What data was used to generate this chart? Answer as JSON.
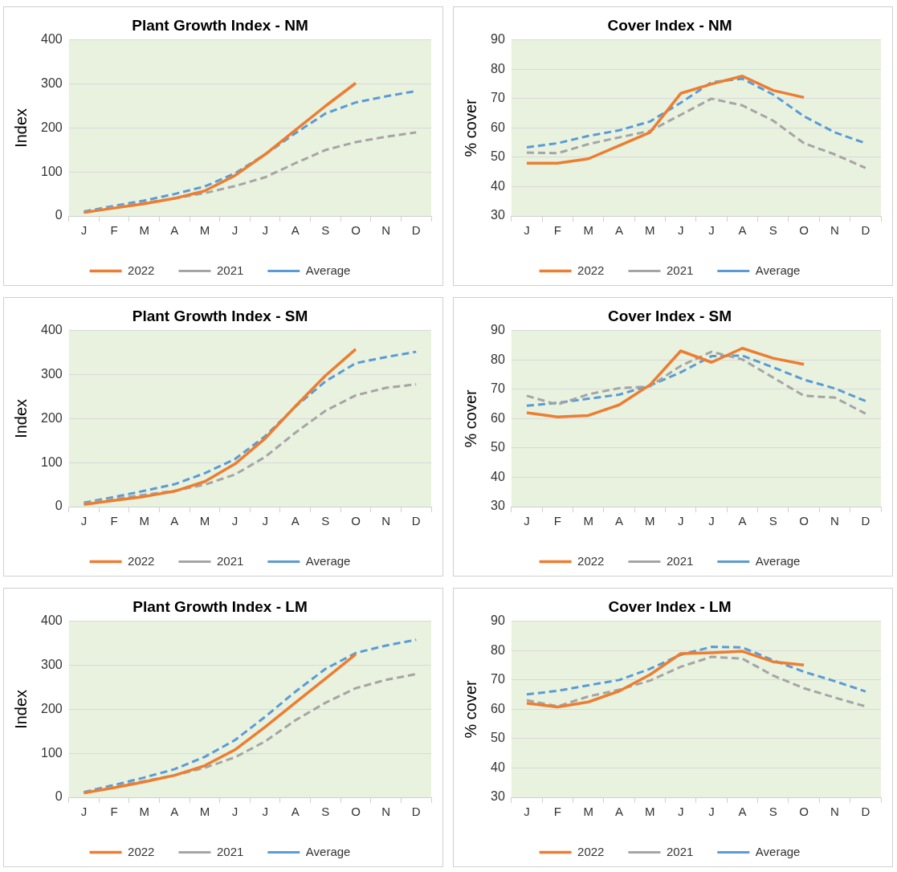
{
  "chart_data": [
    {
      "type": "line",
      "title": "Plant Growth Index - NM",
      "ylabel": "Index",
      "categories": [
        "J",
        "F",
        "M",
        "A",
        "M",
        "J",
        "J",
        "A",
        "S",
        "O",
        "N",
        "D"
      ],
      "ylim": [
        0,
        400
      ],
      "yticks": [
        0,
        100,
        200,
        300,
        400
      ],
      "grid": "y",
      "legend": "bottom",
      "series": [
        {
          "name": "2022",
          "color": "#ed7d31",
          "line_style": "solid",
          "values": [
            8,
            18,
            28,
            40,
            57,
            92,
            140,
            195,
            250,
            302,
            null,
            null
          ]
        },
        {
          "name": "2021",
          "color": "#a5a5a5",
          "line_style": "dashed",
          "values": [
            8,
            20,
            30,
            40,
            52,
            68,
            88,
            120,
            150,
            168,
            180,
            190
          ]
        },
        {
          "name": "Average",
          "color": "#5b9bd5",
          "line_style": "dashed",
          "values": [
            10,
            23,
            35,
            50,
            67,
            97,
            140,
            188,
            233,
            258,
            272,
            284
          ]
        }
      ]
    },
    {
      "type": "line",
      "title": "Cover Index - NM",
      "ylabel": "% cover",
      "categories": [
        "J",
        "F",
        "M",
        "A",
        "M",
        "J",
        "J",
        "A",
        "S",
        "O",
        "N",
        "D"
      ],
      "ylim": [
        30,
        90
      ],
      "yticks": [
        30,
        40,
        50,
        60,
        70,
        80,
        90
      ],
      "grid": "y",
      "legend": "bottom",
      "series": [
        {
          "name": "2022",
          "color": "#ed7d31",
          "line_style": "solid",
          "values": [
            48,
            48,
            49.5,
            54,
            58.5,
            71.8,
            75,
            77.7,
            72.8,
            70.4,
            null,
            null
          ]
        },
        {
          "name": "2021",
          "color": "#a5a5a5",
          "line_style": "dashed",
          "values": [
            51.6,
            51.4,
            54.5,
            56.8,
            59,
            64.5,
            70,
            67.7,
            62.5,
            54.8,
            51,
            46.4
          ]
        },
        {
          "name": "Average",
          "color": "#5b9bd5",
          "line_style": "dashed",
          "values": [
            53.4,
            54.8,
            57.3,
            59.2,
            62.2,
            68.6,
            75.6,
            76.8,
            71.4,
            64,
            58.5,
            54.8
          ]
        }
      ]
    },
    {
      "type": "line",
      "title": "Plant Growth Index - SM",
      "ylabel": "Index",
      "categories": [
        "J",
        "F",
        "M",
        "A",
        "M",
        "J",
        "J",
        "A",
        "S",
        "O",
        "N",
        "D"
      ],
      "ylim": [
        0,
        400
      ],
      "yticks": [
        0,
        100,
        200,
        300,
        400
      ],
      "grid": "y",
      "legend": "bottom",
      "series": [
        {
          "name": "2022",
          "color": "#ed7d31",
          "line_style": "solid",
          "values": [
            5,
            14,
            23,
            35,
            57,
            97,
            155,
            228,
            298,
            358,
            null,
            null
          ]
        },
        {
          "name": "2021",
          "color": "#a5a5a5",
          "line_style": "dashed",
          "values": [
            7,
            18,
            27,
            36,
            50,
            73,
            113,
            168,
            218,
            253,
            270,
            278
          ]
        },
        {
          "name": "Average",
          "color": "#5b9bd5",
          "line_style": "dashed",
          "values": [
            9,
            22,
            36,
            51,
            76,
            108,
            160,
            227,
            285,
            326,
            340,
            352
          ]
        }
      ]
    },
    {
      "type": "line",
      "title": "Cover Index - SM",
      "ylabel": "% cover",
      "categories": [
        "J",
        "F",
        "M",
        "A",
        "M",
        "J",
        "J",
        "A",
        "S",
        "O",
        "N",
        "D"
      ],
      "ylim": [
        30,
        90
      ],
      "yticks": [
        30,
        40,
        50,
        60,
        70,
        80,
        90
      ],
      "grid": "y",
      "legend": "bottom",
      "series": [
        {
          "name": "2022",
          "color": "#ed7d31",
          "line_style": "solid",
          "values": [
            62,
            60.6,
            61.1,
            64.7,
            71.5,
            83.1,
            79.2,
            84,
            80.6,
            78.5,
            null,
            null
          ]
        },
        {
          "name": "2021",
          "color": "#a5a5a5",
          "line_style": "dashed",
          "values": [
            67.8,
            64.8,
            68.3,
            70.4,
            71,
            78,
            82.8,
            80.2,
            74,
            67.8,
            67.2,
            61.7
          ]
        },
        {
          "name": "Average",
          "color": "#5b9bd5",
          "line_style": "dashed",
          "values": [
            64.4,
            65.4,
            66.8,
            68.2,
            71.3,
            75.8,
            81.3,
            81.5,
            77.5,
            73.3,
            70.3,
            66
          ]
        }
      ]
    },
    {
      "type": "line",
      "title": "Plant Growth Index - LM",
      "ylabel": "Index",
      "categories": [
        "J",
        "F",
        "M",
        "A",
        "M",
        "J",
        "J",
        "A",
        "S",
        "O",
        "N",
        "D"
      ],
      "ylim": [
        0,
        400
      ],
      "yticks": [
        0,
        100,
        200,
        300,
        400
      ],
      "grid": "y",
      "legend": "bottom",
      "series": [
        {
          "name": "2022",
          "color": "#ed7d31",
          "line_style": "solid",
          "values": [
            10,
            22,
            35,
            50,
            72,
            108,
            160,
            215,
            270,
            325,
            null,
            null
          ]
        },
        {
          "name": "2021",
          "color": "#a5a5a5",
          "line_style": "dashed",
          "values": [
            10,
            24,
            37,
            50,
            67,
            91,
            127,
            175,
            215,
            248,
            267,
            280
          ]
        },
        {
          "name": "Average",
          "color": "#5b9bd5",
          "line_style": "dashed",
          "values": [
            12,
            28,
            45,
            64,
            92,
            130,
            183,
            240,
            292,
            328,
            345,
            358
          ]
        }
      ]
    },
    {
      "type": "line",
      "title": "Cover Index - LM",
      "ylabel": "% cover",
      "categories": [
        "J",
        "F",
        "M",
        "A",
        "M",
        "J",
        "J",
        "A",
        "S",
        "O",
        "N",
        "D"
      ],
      "ylim": [
        30,
        90
      ],
      "yticks": [
        30,
        40,
        50,
        60,
        70,
        80,
        90
      ],
      "grid": "y",
      "legend": "bottom",
      "series": [
        {
          "name": "2022",
          "color": "#ed7d31",
          "line_style": "solid",
          "values": [
            62.1,
            60.8,
            62.5,
            66.2,
            71.8,
            79,
            79.3,
            79.8,
            76.2,
            75.1,
            null,
            null
          ]
        },
        {
          "name": "2021",
          "color": "#a5a5a5",
          "line_style": "dashed",
          "values": [
            63.1,
            61,
            64.4,
            66.7,
            69.8,
            74.5,
            77.9,
            77.3,
            71.5,
            67.2,
            64,
            61
          ]
        },
        {
          "name": "Average",
          "color": "#5b9bd5",
          "line_style": "dashed",
          "values": [
            65.1,
            66.3,
            68.2,
            70,
            73.8,
            78.6,
            81.3,
            81.1,
            76.7,
            72.8,
            69.6,
            66.1
          ]
        }
      ]
    }
  ]
}
